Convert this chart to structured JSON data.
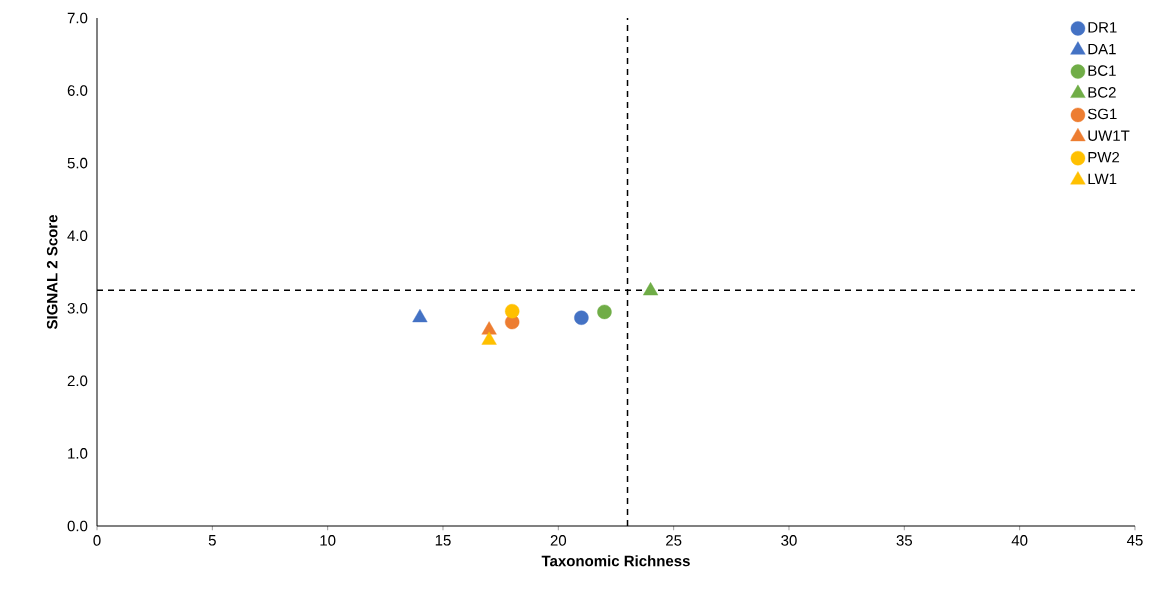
{
  "chart_data": {
    "type": "scatter",
    "xlabel": "Taxonomic Richness",
    "ylabel": "SIGNAL 2 Score",
    "xlim": [
      0,
      45
    ],
    "ylim": [
      0,
      7
    ],
    "xticks": [
      0,
      5,
      10,
      15,
      20,
      25,
      30,
      35,
      40,
      45
    ],
    "yticks": [
      {
        "value": 0,
        "label": "0.0"
      },
      {
        "value": 1,
        "label": "1.0"
      },
      {
        "value": 2,
        "label": "2.0"
      },
      {
        "value": 3,
        "label": "3.0"
      },
      {
        "value": 4,
        "label": "4.0"
      },
      {
        "value": 5,
        "label": "5.0"
      },
      {
        "value": 6,
        "label": "6.0"
      },
      {
        "value": 7,
        "label": "7.0"
      }
    ],
    "grid": false,
    "legend": "top right",
    "ref_lines": [
      {
        "axis": "x",
        "value": 23,
        "line_style": "dashed",
        "color": "#000000"
      },
      {
        "axis": "y",
        "value": 3.25,
        "line_style": "dashed",
        "color": "#000000"
      }
    ],
    "series": [
      {
        "name": "DR1",
        "color": "#4472c4",
        "marker": "circle",
        "x": [
          21
        ],
        "values": [
          2.87
        ]
      },
      {
        "name": "DA1",
        "color": "#4472c4",
        "marker": "triangle",
        "x": [
          14
        ],
        "values": [
          2.87
        ]
      },
      {
        "name": "BC1",
        "color": "#70ad47",
        "marker": "circle",
        "x": [
          22
        ],
        "values": [
          2.95
        ]
      },
      {
        "name": "BC2",
        "color": "#70ad47",
        "marker": "triangle",
        "x": [
          24
        ],
        "values": [
          3.24
        ]
      },
      {
        "name": "SG1",
        "color": "#ed7d31",
        "marker": "circle",
        "x": [
          18
        ],
        "values": [
          2.81
        ]
      },
      {
        "name": "UW1T",
        "color": "#ed7d31",
        "marker": "triangle",
        "x": [
          17
        ],
        "values": [
          2.7
        ]
      },
      {
        "name": "PW2",
        "color": "#ffc000",
        "marker": "circle",
        "x": [
          18
        ],
        "values": [
          2.96
        ]
      },
      {
        "name": "LW1",
        "color": "#ffc000",
        "marker": "triangle",
        "x": [
          17
        ],
        "values": [
          2.56
        ]
      }
    ]
  }
}
